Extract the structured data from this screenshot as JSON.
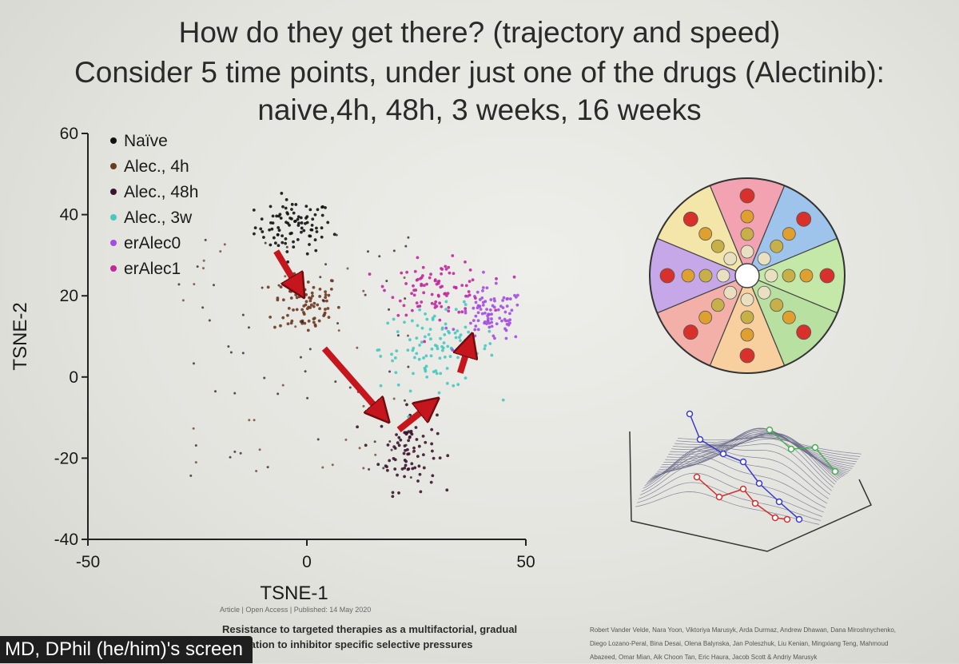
{
  "slide": {
    "title_line1": "How do they get there? (trajectory and speed)",
    "title_line2": "Consider 5 time points, under just one of the drugs (Alectinib):",
    "title_line3": "naive,4h, 48h, 3 weeks, 16 weeks"
  },
  "chart_data": {
    "type": "scatter",
    "xlabel": "TSNE-1",
    "ylabel": "TSNE-2",
    "xlim": [
      -50,
      50
    ],
    "ylim": [
      -40,
      60
    ],
    "xticks": [
      "-50",
      "0",
      "50"
    ],
    "yticks": [
      "-40",
      "-20",
      "0",
      "20",
      "40",
      "60"
    ],
    "legend_position": "top-left",
    "series": [
      {
        "name": "Naïve",
        "color": "#111111",
        "center": [
          -3,
          37
        ],
        "spread": [
          8,
          6
        ],
        "n": 90
      },
      {
        "name": "Alec., 4h",
        "color": "#6b3a22",
        "center": [
          0,
          18
        ],
        "spread": [
          7,
          7
        ],
        "n": 80
      },
      {
        "name": "Alec., 48h",
        "color": "#3a1530",
        "center": [
          23,
          -18
        ],
        "spread": [
          6,
          9
        ],
        "n": 80
      },
      {
        "name": "Alec., 3w",
        "color": "#47c9c0",
        "center": [
          30,
          7
        ],
        "spread": [
          12,
          9
        ],
        "n": 110
      },
      {
        "name": "erAlec0",
        "color": "#a34ee0",
        "center": [
          42,
          15
        ],
        "spread": [
          7,
          6
        ],
        "n": 90
      },
      {
        "name": "erAlec1",
        "color": "#c2289e",
        "center": [
          30,
          22
        ],
        "spread": [
          10,
          6
        ],
        "n": 90
      }
    ],
    "arrows": [
      {
        "from": [
          -7,
          31
        ],
        "to": [
          -2,
          22
        ]
      },
      {
        "from": [
          4,
          7
        ],
        "to": [
          17,
          -9
        ]
      },
      {
        "from": [
          21,
          -13
        ],
        "to": [
          28,
          -7
        ]
      },
      {
        "from": [
          35,
          1
        ],
        "to": [
          37,
          8
        ]
      }
    ]
  },
  "citation": {
    "meta": "Article | Open Access | Published: 14 May 2020",
    "title": "Resistance to targeted therapies as a multifactorial, gradual adaptation to inhibitor specific selective pressures",
    "authors": "Robert Vander Velde, Nara Yoon, Viktoriya Marusyk, Arda Durmaz, Andrew Dhawan, Dana Miroshnychenko, Diego Lozano-Peral, Bina Desai, Olena Balynska, Jan Poleszhuk, Liu Kenian, Mingxiang Teng, Mahmoud Abazeed, Omar Mian, Aik Choon Tan, Eric Haura, Jacob Scott & Andriy Marusyk"
  },
  "screen_share": {
    "label": "MD, DPhil (he/him)'s screen"
  },
  "colors": {
    "arrow": "#c4161c",
    "background": "#e8e8e4"
  }
}
